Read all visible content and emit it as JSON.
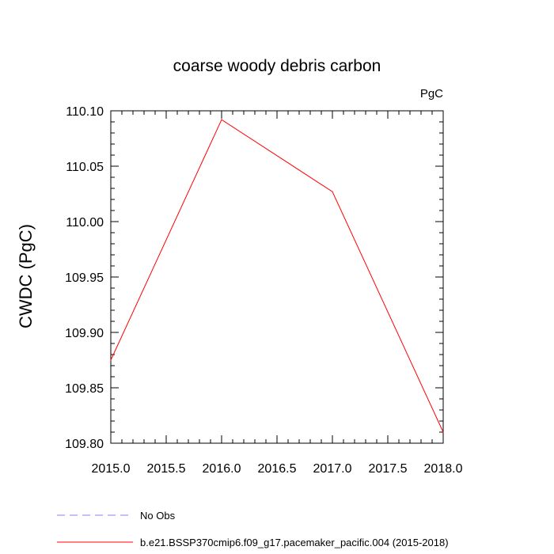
{
  "chart_data": {
    "type": "line",
    "title": "coarse woody debris carbon",
    "units_label": "PgC",
    "ylabel": "CWDC  (PgC)",
    "xlabel": "",
    "xlim": [
      2015.0,
      2018.0
    ],
    "ylim": [
      109.8,
      110.1
    ],
    "x_ticks": [
      "2015.0",
      "2015.5",
      "2016.0",
      "2016.5",
      "2017.0",
      "2017.5",
      "2018.0"
    ],
    "y_ticks": [
      "110.10",
      "110.05",
      "110.00",
      "109.95",
      "109.90",
      "109.85",
      "109.80"
    ],
    "grid": false,
    "legend_placement": "bottom",
    "series": [
      {
        "name": "b.e21.BSSP370cmip6.f09_g17.pacemaker_pacific.004 (2015-2018)",
        "color": "#ff0000",
        "style": "solid",
        "x": [
          2015,
          2016,
          2017,
          2018
        ],
        "y": [
          109.875,
          110.092,
          110.027,
          109.81
        ]
      }
    ],
    "legend": [
      {
        "label": "No Obs",
        "color": "#8080ff",
        "style": "dashed"
      },
      {
        "label": "b.e21.BSSP370cmip6.f09_g17.pacemaker_pacific.004 (2015-2018)",
        "color": "#ff0000",
        "style": "solid"
      }
    ]
  }
}
